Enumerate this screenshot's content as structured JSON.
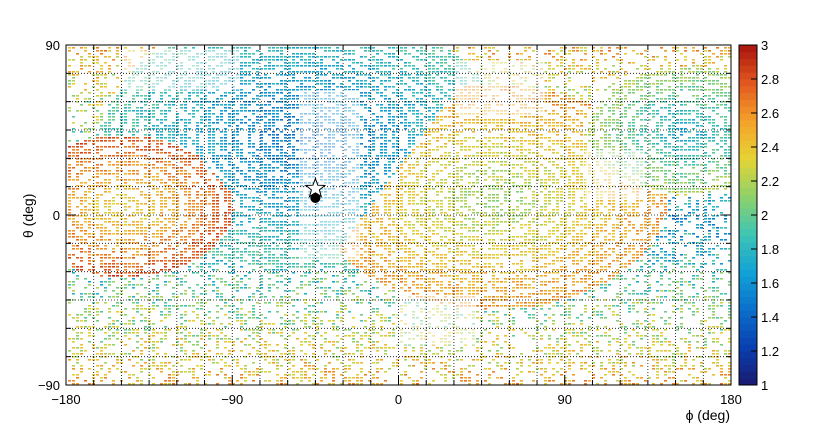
{
  "chart_data": {
    "type": "heatmap",
    "xlabel": "ϕ (deg)",
    "ylabel": "θ (deg)",
    "xlim": [
      -180,
      180
    ],
    "ylim": [
      -90,
      90
    ],
    "x_ticks": [
      -180,
      -90,
      0,
      90,
      180
    ],
    "x_tick_labels": [
      "−180",
      "−90",
      "0",
      "90",
      "180"
    ],
    "y_ticks": [
      -90,
      0,
      90
    ],
    "y_tick_labels": [
      "−90",
      "0",
      "90"
    ],
    "grid": true,
    "colorbar": {
      "range": [
        1,
        3
      ],
      "ticks": [
        1,
        1.2,
        1.4,
        1.6,
        1.8,
        2,
        2.2,
        2.4,
        2.6,
        2.8,
        3
      ],
      "tick_labels": [
        "1",
        "1.2",
        "1.4",
        "1.6",
        "1.8",
        "2",
        "2.2",
        "2.4",
        "2.6",
        "2.8",
        "3"
      ],
      "palette": [
        "#1b1a6e",
        "#0a3fb0",
        "#0b6fcb",
        "#11a3d6",
        "#3ec5b4",
        "#8ed26a",
        "#e6d435",
        "#f4a12a",
        "#e2581f",
        "#a8140f"
      ]
    },
    "ring_patterns": [
      {
        "center": [
          -52,
          40
        ],
        "radius_max": 110,
        "value": 1.45
      },
      {
        "center": [
          50,
          10
        ],
        "radius_max": 95,
        "value": 2.1
      },
      {
        "center": [
          -150,
          5
        ],
        "radius_max": 60,
        "value": 2.3
      },
      {
        "center": [
          155,
          45
        ],
        "radius_max": 55,
        "value": 1.7
      }
    ],
    "markers": [
      {
        "type": "star",
        "phi": -45,
        "theta": 14
      },
      {
        "type": "circle",
        "phi": -45,
        "theta": 9
      }
    ]
  }
}
